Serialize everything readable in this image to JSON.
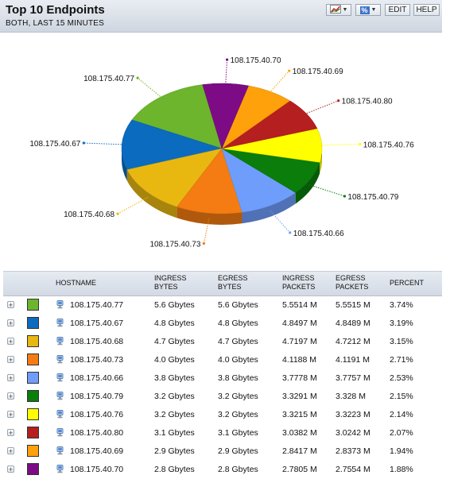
{
  "header": {
    "title": "Top 10 Endpoints",
    "subtitle": "BOTH, LAST 15 MINUTES",
    "percent_button": "%",
    "edit_label": "EDIT",
    "help_label": "HELP"
  },
  "chart_data": {
    "type": "pie",
    "categories": [
      "108.175.40.77",
      "108.175.40.67",
      "108.175.40.68",
      "108.175.40.73",
      "108.175.40.66",
      "108.175.40.79",
      "108.175.40.76",
      "108.175.40.80",
      "108.175.40.69",
      "108.175.40.70"
    ],
    "values": [
      3.74,
      3.19,
      3.15,
      2.71,
      2.53,
      2.15,
      2.14,
      2.07,
      1.94,
      1.88
    ],
    "colors": [
      "#6cb52c",
      "#0a6bbf",
      "#e8b811",
      "#f47c12",
      "#6f9dfb",
      "#0a7d0a",
      "#ffff00",
      "#b51f1f",
      "#ffa10a",
      "#7d0b85"
    ]
  },
  "table": {
    "headers": {
      "hostname": "HOSTNAME",
      "ingress_bytes": [
        "INGRESS",
        "BYTES"
      ],
      "egress_bytes": [
        "EGRESS",
        "BYTES"
      ],
      "ingress_packets": [
        "INGRESS",
        "PACKETS"
      ],
      "egress_packets": [
        "EGRESS",
        "PACKETS"
      ],
      "percent": "PERCENT"
    },
    "rows": [
      {
        "host": "108.175.40.77",
        "in_bytes": "5.6 Gbytes",
        "eg_bytes": "5.6 Gbytes",
        "in_pkts": "5.5514 M",
        "eg_pkts": "5.5515 M",
        "pct": "3.74%",
        "color": "#6cb52c"
      },
      {
        "host": "108.175.40.67",
        "in_bytes": "4.8 Gbytes",
        "eg_bytes": "4.8 Gbytes",
        "in_pkts": "4.8497 M",
        "eg_pkts": "4.8489 M",
        "pct": "3.19%",
        "color": "#0a6bbf"
      },
      {
        "host": "108.175.40.68",
        "in_bytes": "4.7 Gbytes",
        "eg_bytes": "4.7 Gbytes",
        "in_pkts": "4.7197 M",
        "eg_pkts": "4.7212 M",
        "pct": "3.15%",
        "color": "#e8b811"
      },
      {
        "host": "108.175.40.73",
        "in_bytes": "4.0 Gbytes",
        "eg_bytes": "4.0 Gbytes",
        "in_pkts": "4.1188 M",
        "eg_pkts": "4.1191 M",
        "pct": "2.71%",
        "color": "#f47c12"
      },
      {
        "host": "108.175.40.66",
        "in_bytes": "3.8 Gbytes",
        "eg_bytes": "3.8 Gbytes",
        "in_pkts": "3.7778 M",
        "eg_pkts": "3.7757 M",
        "pct": "2.53%",
        "color": "#6f9dfb"
      },
      {
        "host": "108.175.40.79",
        "in_bytes": "3.2 Gbytes",
        "eg_bytes": "3.2 Gbytes",
        "in_pkts": "3.3291 M",
        "eg_pkts": "3.328 M",
        "pct": "2.15%",
        "color": "#0a7d0a"
      },
      {
        "host": "108.175.40.76",
        "in_bytes": "3.2 Gbytes",
        "eg_bytes": "3.2 Gbytes",
        "in_pkts": "3.3215 M",
        "eg_pkts": "3.3223 M",
        "pct": "2.14%",
        "color": "#ffff00"
      },
      {
        "host": "108.175.40.80",
        "in_bytes": "3.1 Gbytes",
        "eg_bytes": "3.1 Gbytes",
        "in_pkts": "3.0382 M",
        "eg_pkts": "3.0242 M",
        "pct": "2.07%",
        "color": "#b51f1f"
      },
      {
        "host": "108.175.40.69",
        "in_bytes": "2.9 Gbytes",
        "eg_bytes": "2.9 Gbytes",
        "in_pkts": "2.8417 M",
        "eg_pkts": "2.8373 M",
        "pct": "1.94%",
        "color": "#ffa10a"
      },
      {
        "host": "108.175.40.70",
        "in_bytes": "2.8 Gbytes",
        "eg_bytes": "2.8 Gbytes",
        "in_pkts": "2.7805 M",
        "eg_pkts": "2.7554 M",
        "pct": "1.88%",
        "color": "#7d0b85"
      }
    ]
  }
}
